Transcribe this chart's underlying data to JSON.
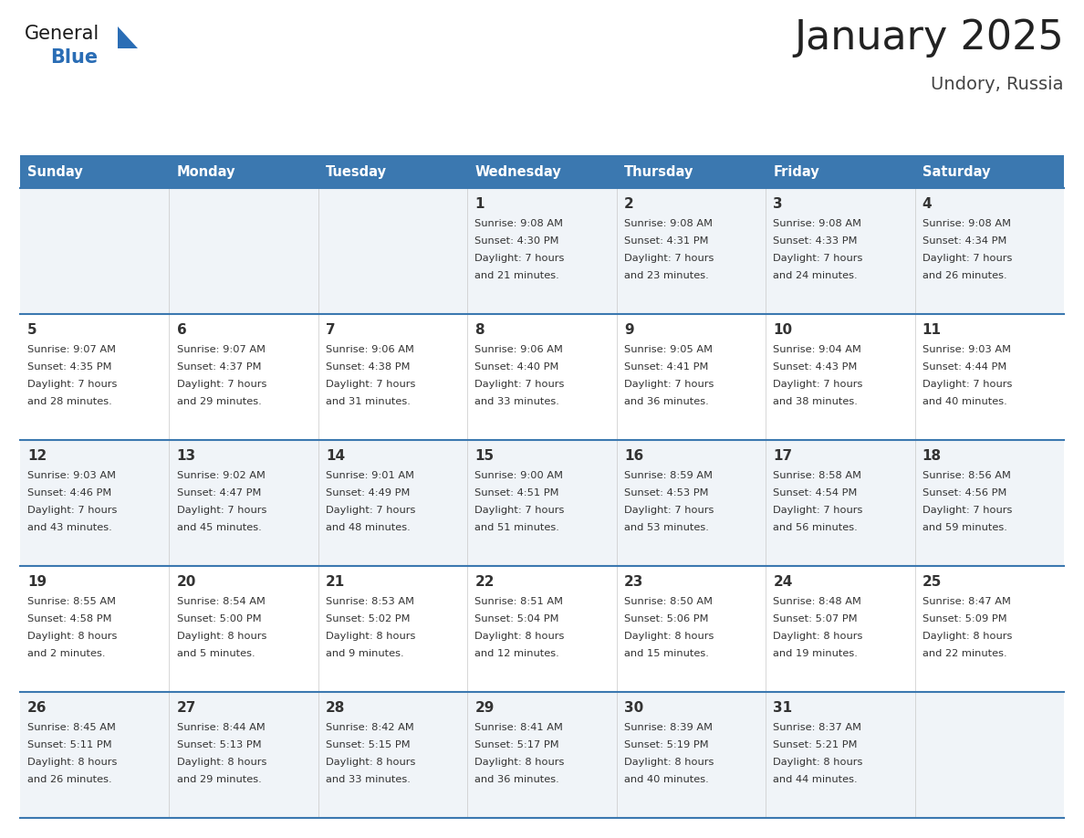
{
  "title": "January 2025",
  "subtitle": "Undory, Russia",
  "header_color": "#3b78b0",
  "header_text_color": "#ffffff",
  "row_bg_even": "#f0f4f8",
  "row_bg_odd": "#ffffff",
  "border_color": "#3b78b0",
  "cell_text_color": "#333333",
  "day_names": [
    "Sunday",
    "Monday",
    "Tuesday",
    "Wednesday",
    "Thursday",
    "Friday",
    "Saturday"
  ],
  "logo_general_color": "#1a1a1a",
  "logo_blue_color": "#2a6db5",
  "weeks": [
    [
      {
        "day": "",
        "sunrise": "",
        "sunset": "",
        "daylight_line1": "",
        "daylight_line2": ""
      },
      {
        "day": "",
        "sunrise": "",
        "sunset": "",
        "daylight_line1": "",
        "daylight_line2": ""
      },
      {
        "day": "",
        "sunrise": "",
        "sunset": "",
        "daylight_line1": "",
        "daylight_line2": ""
      },
      {
        "day": "1",
        "sunrise": "Sunrise: 9:08 AM",
        "sunset": "Sunset: 4:30 PM",
        "daylight_line1": "Daylight: 7 hours",
        "daylight_line2": "and 21 minutes."
      },
      {
        "day": "2",
        "sunrise": "Sunrise: 9:08 AM",
        "sunset": "Sunset: 4:31 PM",
        "daylight_line1": "Daylight: 7 hours",
        "daylight_line2": "and 23 minutes."
      },
      {
        "day": "3",
        "sunrise": "Sunrise: 9:08 AM",
        "sunset": "Sunset: 4:33 PM",
        "daylight_line1": "Daylight: 7 hours",
        "daylight_line2": "and 24 minutes."
      },
      {
        "day": "4",
        "sunrise": "Sunrise: 9:08 AM",
        "sunset": "Sunset: 4:34 PM",
        "daylight_line1": "Daylight: 7 hours",
        "daylight_line2": "and 26 minutes."
      }
    ],
    [
      {
        "day": "5",
        "sunrise": "Sunrise: 9:07 AM",
        "sunset": "Sunset: 4:35 PM",
        "daylight_line1": "Daylight: 7 hours",
        "daylight_line2": "and 28 minutes."
      },
      {
        "day": "6",
        "sunrise": "Sunrise: 9:07 AM",
        "sunset": "Sunset: 4:37 PM",
        "daylight_line1": "Daylight: 7 hours",
        "daylight_line2": "and 29 minutes."
      },
      {
        "day": "7",
        "sunrise": "Sunrise: 9:06 AM",
        "sunset": "Sunset: 4:38 PM",
        "daylight_line1": "Daylight: 7 hours",
        "daylight_line2": "and 31 minutes."
      },
      {
        "day": "8",
        "sunrise": "Sunrise: 9:06 AM",
        "sunset": "Sunset: 4:40 PM",
        "daylight_line1": "Daylight: 7 hours",
        "daylight_line2": "and 33 minutes."
      },
      {
        "day": "9",
        "sunrise": "Sunrise: 9:05 AM",
        "sunset": "Sunset: 4:41 PM",
        "daylight_line1": "Daylight: 7 hours",
        "daylight_line2": "and 36 minutes."
      },
      {
        "day": "10",
        "sunrise": "Sunrise: 9:04 AM",
        "sunset": "Sunset: 4:43 PM",
        "daylight_line1": "Daylight: 7 hours",
        "daylight_line2": "and 38 minutes."
      },
      {
        "day": "11",
        "sunrise": "Sunrise: 9:03 AM",
        "sunset": "Sunset: 4:44 PM",
        "daylight_line1": "Daylight: 7 hours",
        "daylight_line2": "and 40 minutes."
      }
    ],
    [
      {
        "day": "12",
        "sunrise": "Sunrise: 9:03 AM",
        "sunset": "Sunset: 4:46 PM",
        "daylight_line1": "Daylight: 7 hours",
        "daylight_line2": "and 43 minutes."
      },
      {
        "day": "13",
        "sunrise": "Sunrise: 9:02 AM",
        "sunset": "Sunset: 4:47 PM",
        "daylight_line1": "Daylight: 7 hours",
        "daylight_line2": "and 45 minutes."
      },
      {
        "day": "14",
        "sunrise": "Sunrise: 9:01 AM",
        "sunset": "Sunset: 4:49 PM",
        "daylight_line1": "Daylight: 7 hours",
        "daylight_line2": "and 48 minutes."
      },
      {
        "day": "15",
        "sunrise": "Sunrise: 9:00 AM",
        "sunset": "Sunset: 4:51 PM",
        "daylight_line1": "Daylight: 7 hours",
        "daylight_line2": "and 51 minutes."
      },
      {
        "day": "16",
        "sunrise": "Sunrise: 8:59 AM",
        "sunset": "Sunset: 4:53 PM",
        "daylight_line1": "Daylight: 7 hours",
        "daylight_line2": "and 53 minutes."
      },
      {
        "day": "17",
        "sunrise": "Sunrise: 8:58 AM",
        "sunset": "Sunset: 4:54 PM",
        "daylight_line1": "Daylight: 7 hours",
        "daylight_line2": "and 56 minutes."
      },
      {
        "day": "18",
        "sunrise": "Sunrise: 8:56 AM",
        "sunset": "Sunset: 4:56 PM",
        "daylight_line1": "Daylight: 7 hours",
        "daylight_line2": "and 59 minutes."
      }
    ],
    [
      {
        "day": "19",
        "sunrise": "Sunrise: 8:55 AM",
        "sunset": "Sunset: 4:58 PM",
        "daylight_line1": "Daylight: 8 hours",
        "daylight_line2": "and 2 minutes."
      },
      {
        "day": "20",
        "sunrise": "Sunrise: 8:54 AM",
        "sunset": "Sunset: 5:00 PM",
        "daylight_line1": "Daylight: 8 hours",
        "daylight_line2": "and 5 minutes."
      },
      {
        "day": "21",
        "sunrise": "Sunrise: 8:53 AM",
        "sunset": "Sunset: 5:02 PM",
        "daylight_line1": "Daylight: 8 hours",
        "daylight_line2": "and 9 minutes."
      },
      {
        "day": "22",
        "sunrise": "Sunrise: 8:51 AM",
        "sunset": "Sunset: 5:04 PM",
        "daylight_line1": "Daylight: 8 hours",
        "daylight_line2": "and 12 minutes."
      },
      {
        "day": "23",
        "sunrise": "Sunrise: 8:50 AM",
        "sunset": "Sunset: 5:06 PM",
        "daylight_line1": "Daylight: 8 hours",
        "daylight_line2": "and 15 minutes."
      },
      {
        "day": "24",
        "sunrise": "Sunrise: 8:48 AM",
        "sunset": "Sunset: 5:07 PM",
        "daylight_line1": "Daylight: 8 hours",
        "daylight_line2": "and 19 minutes."
      },
      {
        "day": "25",
        "sunrise": "Sunrise: 8:47 AM",
        "sunset": "Sunset: 5:09 PM",
        "daylight_line1": "Daylight: 8 hours",
        "daylight_line2": "and 22 minutes."
      }
    ],
    [
      {
        "day": "26",
        "sunrise": "Sunrise: 8:45 AM",
        "sunset": "Sunset: 5:11 PM",
        "daylight_line1": "Daylight: 8 hours",
        "daylight_line2": "and 26 minutes."
      },
      {
        "day": "27",
        "sunrise": "Sunrise: 8:44 AM",
        "sunset": "Sunset: 5:13 PM",
        "daylight_line1": "Daylight: 8 hours",
        "daylight_line2": "and 29 minutes."
      },
      {
        "day": "28",
        "sunrise": "Sunrise: 8:42 AM",
        "sunset": "Sunset: 5:15 PM",
        "daylight_line1": "Daylight: 8 hours",
        "daylight_line2": "and 33 minutes."
      },
      {
        "day": "29",
        "sunrise": "Sunrise: 8:41 AM",
        "sunset": "Sunset: 5:17 PM",
        "daylight_line1": "Daylight: 8 hours",
        "daylight_line2": "and 36 minutes."
      },
      {
        "day": "30",
        "sunrise": "Sunrise: 8:39 AM",
        "sunset": "Sunset: 5:19 PM",
        "daylight_line1": "Daylight: 8 hours",
        "daylight_line2": "and 40 minutes."
      },
      {
        "day": "31",
        "sunrise": "Sunrise: 8:37 AM",
        "sunset": "Sunset: 5:21 PM",
        "daylight_line1": "Daylight: 8 hours",
        "daylight_line2": "and 44 minutes."
      },
      {
        "day": "",
        "sunrise": "",
        "sunset": "",
        "daylight_line1": "",
        "daylight_line2": ""
      }
    ]
  ]
}
